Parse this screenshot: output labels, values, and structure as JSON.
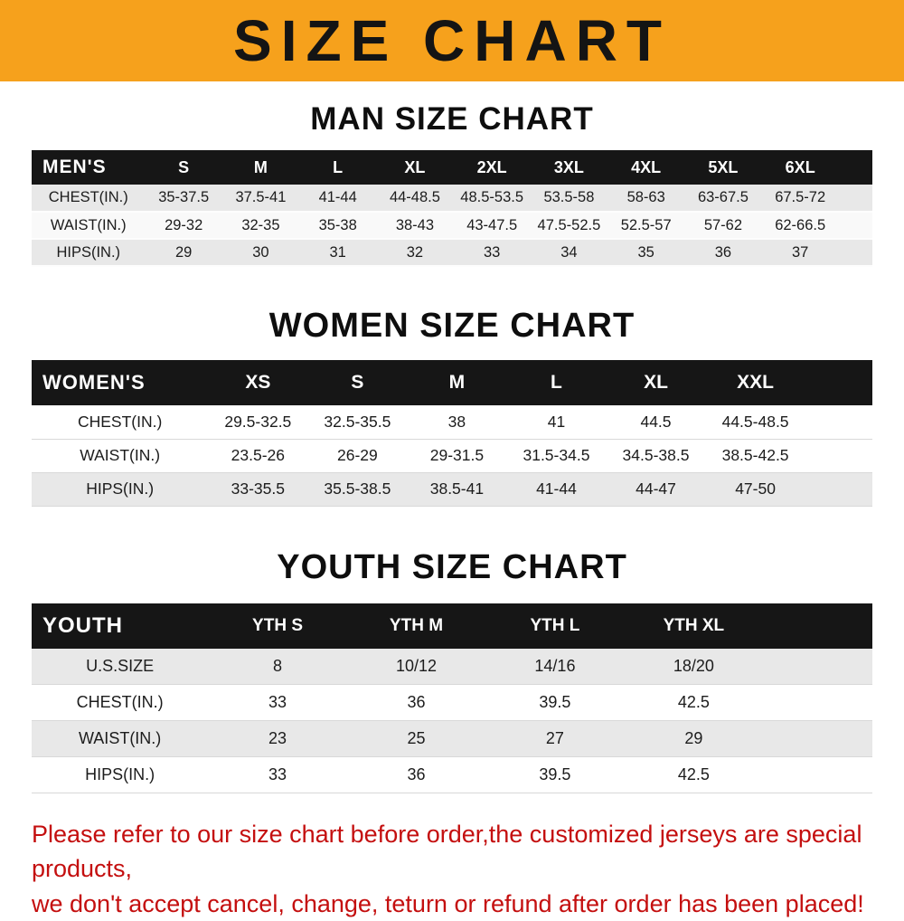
{
  "banner": {
    "title": "SIZE CHART"
  },
  "colors": {
    "banner_bg": "#f6a11c",
    "table_header_bg": "#161616",
    "table_header_text": "#ffffff",
    "shaded_row_bg": "#e8e8e8",
    "warning_text": "#c40f0f"
  },
  "chart_data": [
    {
      "type": "table",
      "title": "MAN SIZE CHART",
      "corner_label": "MEN'S",
      "columns": [
        "S",
        "M",
        "L",
        "XL",
        "2XL",
        "3XL",
        "4XL",
        "5XL",
        "6XL"
      ],
      "rows": [
        {
          "label": "CHEST(IN.)",
          "shaded": true,
          "values": [
            "35-37.5",
            "37.5-41",
            "41-44",
            "44-48.5",
            "48.5-53.5",
            "53.5-58",
            "58-63",
            "63-67.5",
            "67.5-72"
          ]
        },
        {
          "label": "WAIST(IN.)",
          "shaded": false,
          "values": [
            "29-32",
            "32-35",
            "35-38",
            "38-43",
            "43-47.5",
            "47.5-52.5",
            "52.5-57",
            "57-62",
            "62-66.5"
          ]
        },
        {
          "label": "HIPS(IN.)",
          "shaded": true,
          "values": [
            "29",
            "30",
            "31",
            "32",
            "33",
            "34",
            "35",
            "36",
            "37"
          ]
        }
      ]
    },
    {
      "type": "table",
      "title": "WOMEN SIZE CHART",
      "corner_label": "WOMEN'S",
      "columns": [
        "XS",
        "S",
        "M",
        "L",
        "XL",
        "XXL"
      ],
      "rows": [
        {
          "label": "CHEST(IN.)",
          "shaded": false,
          "values": [
            "29.5-32.5",
            "32.5-35.5",
            "38",
            "41",
            "44.5",
            "44.5-48.5"
          ]
        },
        {
          "label": "WAIST(IN.)",
          "shaded": false,
          "values": [
            "23.5-26",
            "26-29",
            "29-31.5",
            "31.5-34.5",
            "34.5-38.5",
            "38.5-42.5"
          ]
        },
        {
          "label": "HIPS(IN.)",
          "shaded": true,
          "values": [
            "33-35.5",
            "35.5-38.5",
            "38.5-41",
            "41-44",
            "44-47",
            "47-50"
          ]
        }
      ]
    },
    {
      "type": "table",
      "title": "YOUTH SIZE CHART",
      "corner_label": "YOUTH",
      "columns": [
        "YTH S",
        "YTH M",
        "YTH L",
        "YTH XL"
      ],
      "rows": [
        {
          "label": "U.S.SIZE",
          "shaded": true,
          "values": [
            "8",
            "10/12",
            "14/16",
            "18/20"
          ]
        },
        {
          "label": "CHEST(IN.)",
          "shaded": false,
          "values": [
            "33",
            "36",
            "39.5",
            "42.5"
          ]
        },
        {
          "label": "WAIST(IN.)",
          "shaded": true,
          "values": [
            "23",
            "25",
            "27",
            "29"
          ]
        },
        {
          "label": "HIPS(IN.)",
          "shaded": false,
          "values": [
            "33",
            "36",
            "39.5",
            "42.5"
          ]
        }
      ]
    }
  ],
  "footer": {
    "line1": "Please refer to our size chart before order,the customized jerseys are special products,",
    "line2": "we don't accept cancel, change, teturn or refund after order has been placed!"
  }
}
